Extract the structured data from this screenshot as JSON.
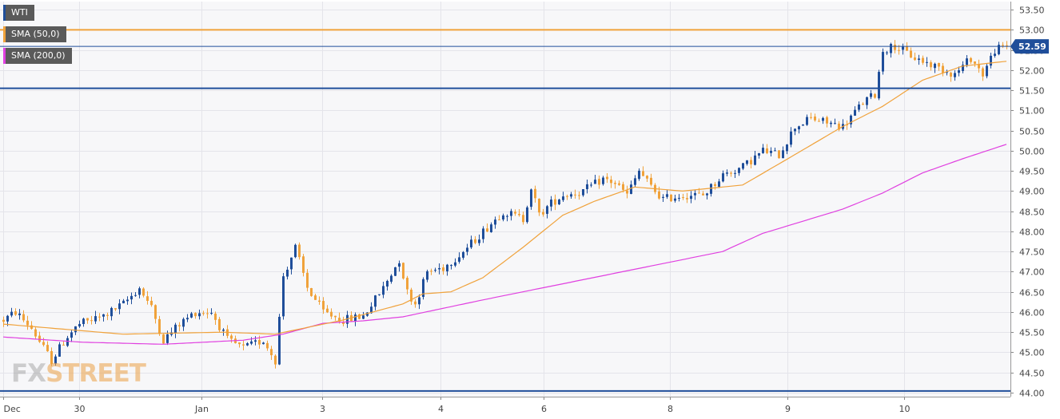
{
  "legend": {
    "instrument": "WTI",
    "sma50": "SMA (50,0)",
    "sma200": "SMA (200,0)"
  },
  "watermark": {
    "part1": "FX",
    "part2": "STREET"
  },
  "colors": {
    "bull": "#1f4e9a",
    "bear": "#f0a23b",
    "sma50": "#f0a23b",
    "sma200": "#e040e0",
    "hline_resistance": "#f0a23b",
    "hline_support": "#1f4e9a",
    "price_tag": "#1f4e9a"
  },
  "chart_data": {
    "type": "candlestick",
    "y_axis": {
      "ylim": [
        43.9,
        53.7
      ],
      "ticks": [
        "53.50",
        "53.00",
        "52.50",
        "52.00",
        "51.50",
        "51.00",
        "50.50",
        "50.00",
        "49.50",
        "49.00",
        "48.50",
        "48.00",
        "47.50",
        "47.00",
        "46.50",
        "46.00",
        "45.50",
        "45.00",
        "44.50",
        "44.00"
      ]
    },
    "x_axis": {
      "labels": [
        "Dec",
        "30",
        "Jan",
        "3",
        "4",
        "6",
        "8",
        "9",
        "10"
      ]
    },
    "last_price": "52.59",
    "horizontal_levels": [
      53.0,
      52.59,
      51.55,
      44.04
    ],
    "price_anchors": [
      [
        0,
        45.8
      ],
      [
        3,
        46.0
      ],
      [
        7,
        45.6
      ],
      [
        10,
        45.1
      ],
      [
        12,
        44.8
      ],
      [
        16,
        45.4
      ],
      [
        19,
        45.7
      ],
      [
        25,
        45.9
      ],
      [
        30,
        46.2
      ],
      [
        34,
        46.6
      ],
      [
        37,
        46.1
      ],
      [
        40,
        45.3
      ],
      [
        44,
        45.7
      ],
      [
        48,
        46.0
      ],
      [
        52,
        46.0
      ],
      [
        56,
        45.3
      ],
      [
        60,
        45.1
      ],
      [
        65,
        45.3
      ],
      [
        68,
        44.8
      ],
      [
        70,
        46.9
      ],
      [
        73,
        47.6
      ],
      [
        76,
        46.6
      ],
      [
        80,
        46.0
      ],
      [
        85,
        45.8
      ],
      [
        90,
        45.9
      ],
      [
        95,
        46.6
      ],
      [
        99,
        47.3
      ],
      [
        101,
        46.5
      ],
      [
        103,
        46.2
      ],
      [
        106,
        47.0
      ],
      [
        110,
        47.1
      ],
      [
        115,
        47.5
      ],
      [
        120,
        48.0
      ],
      [
        125,
        48.5
      ],
      [
        130,
        48.3
      ],
      [
        132,
        49.1
      ],
      [
        134,
        48.4
      ],
      [
        137,
        48.7
      ],
      [
        140,
        48.9
      ],
      [
        145,
        49.0
      ],
      [
        150,
        49.3
      ],
      [
        153,
        49.2
      ],
      [
        156,
        48.9
      ],
      [
        159,
        49.5
      ],
      [
        162,
        49.1
      ],
      [
        165,
        48.8
      ],
      [
        170,
        48.9
      ],
      [
        175,
        48.9
      ],
      [
        180,
        49.4
      ],
      [
        185,
        49.6
      ],
      [
        190,
        50.0
      ],
      [
        194,
        49.9
      ],
      [
        198,
        50.6
      ],
      [
        202,
        50.8
      ],
      [
        206,
        50.7
      ],
      [
        210,
        50.6
      ],
      [
        215,
        51.2
      ],
      [
        218,
        51.4
      ],
      [
        220,
        52.5
      ],
      [
        223,
        52.6
      ],
      [
        228,
        52.3
      ],
      [
        233,
        52.1
      ],
      [
        238,
        51.9
      ],
      [
        242,
        52.3
      ],
      [
        245,
        51.9
      ],
      [
        248,
        52.5
      ],
      [
        251,
        52.59
      ]
    ],
    "sma50_points": [
      [
        0,
        45.7
      ],
      [
        30,
        45.45
      ],
      [
        55,
        45.5
      ],
      [
        68,
        45.45
      ],
      [
        85,
        45.8
      ],
      [
        100,
        46.2
      ],
      [
        105,
        46.45
      ],
      [
        112,
        46.5
      ],
      [
        120,
        46.85
      ],
      [
        130,
        47.6
      ],
      [
        140,
        48.4
      ],
      [
        148,
        48.75
      ],
      [
        158,
        49.1
      ],
      [
        170,
        49.0
      ],
      [
        185,
        49.15
      ],
      [
        198,
        49.9
      ],
      [
        210,
        50.6
      ],
      [
        220,
        51.1
      ],
      [
        230,
        51.75
      ],
      [
        240,
        52.1
      ],
      [
        251,
        52.22
      ]
    ],
    "sma200_points": [
      [
        0,
        45.38
      ],
      [
        20,
        45.25
      ],
      [
        40,
        45.2
      ],
      [
        60,
        45.3
      ],
      [
        70,
        45.45
      ],
      [
        80,
        45.72
      ],
      [
        90,
        45.78
      ],
      [
        100,
        45.88
      ],
      [
        120,
        46.3
      ],
      [
        140,
        46.7
      ],
      [
        160,
        47.1
      ],
      [
        180,
        47.5
      ],
      [
        190,
        47.95
      ],
      [
        200,
        48.25
      ],
      [
        210,
        48.55
      ],
      [
        220,
        48.95
      ],
      [
        230,
        49.45
      ],
      [
        240,
        49.8
      ],
      [
        251,
        50.16
      ]
    ]
  }
}
